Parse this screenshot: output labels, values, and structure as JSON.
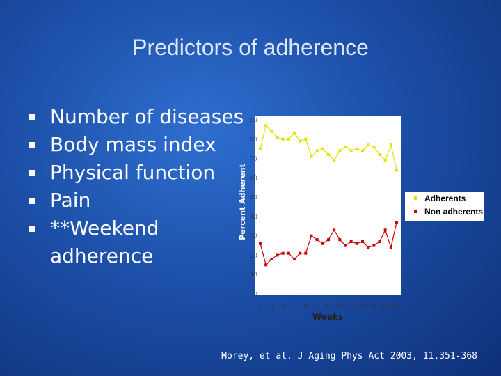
{
  "slide": {
    "title": "Predictors of adherence",
    "bullets": [
      "Number of diseases",
      "Body mass index",
      "Physical function",
      "Pain",
      "**Weekend adherence"
    ],
    "citation": "Morey, et al. J Aging Phys Act 2003, 11,351-368"
  },
  "chart_data": {
    "type": "line",
    "xlabel": "Weeks",
    "ylabel": "Percent Adherent",
    "ylim": [
      0,
      90
    ],
    "yticks": [
      0,
      10,
      20,
      30,
      40,
      50,
      60,
      70,
      80,
      90
    ],
    "xlim": [
      1,
      25
    ],
    "xticks": [
      1,
      3,
      5,
      7,
      9,
      11,
      13,
      15,
      17,
      19,
      21,
      23,
      25
    ],
    "legend_position": "right",
    "grid": false,
    "colors": {
      "Adherents": "#e8e000",
      "Non adherents": "#cc0000"
    },
    "series": [
      {
        "name": "Adherents",
        "x": [
          1,
          2,
          3,
          4,
          5,
          6,
          7,
          8,
          9,
          10,
          11,
          12,
          13,
          14,
          15,
          16,
          17,
          18,
          19,
          20,
          21,
          22,
          23,
          24,
          25
        ],
        "y": [
          75,
          87,
          84,
          81,
          80,
          80,
          83,
          79,
          80,
          71,
          74,
          75,
          72,
          69,
          74,
          76,
          74,
          75,
          74,
          77,
          76,
          72,
          69,
          77,
          64
        ]
      },
      {
        "name": "Non adherents",
        "x": [
          1,
          2,
          3,
          4,
          5,
          6,
          7,
          8,
          9,
          10,
          11,
          12,
          13,
          14,
          15,
          16,
          17,
          18,
          19,
          20,
          21,
          22,
          23,
          24,
          25
        ],
        "y": [
          26,
          15,
          18,
          20,
          21,
          21,
          18,
          21,
          21,
          30,
          28,
          26,
          28,
          33,
          28,
          25,
          27,
          26,
          27,
          24,
          25,
          27,
          33,
          24,
          37
        ]
      }
    ]
  }
}
